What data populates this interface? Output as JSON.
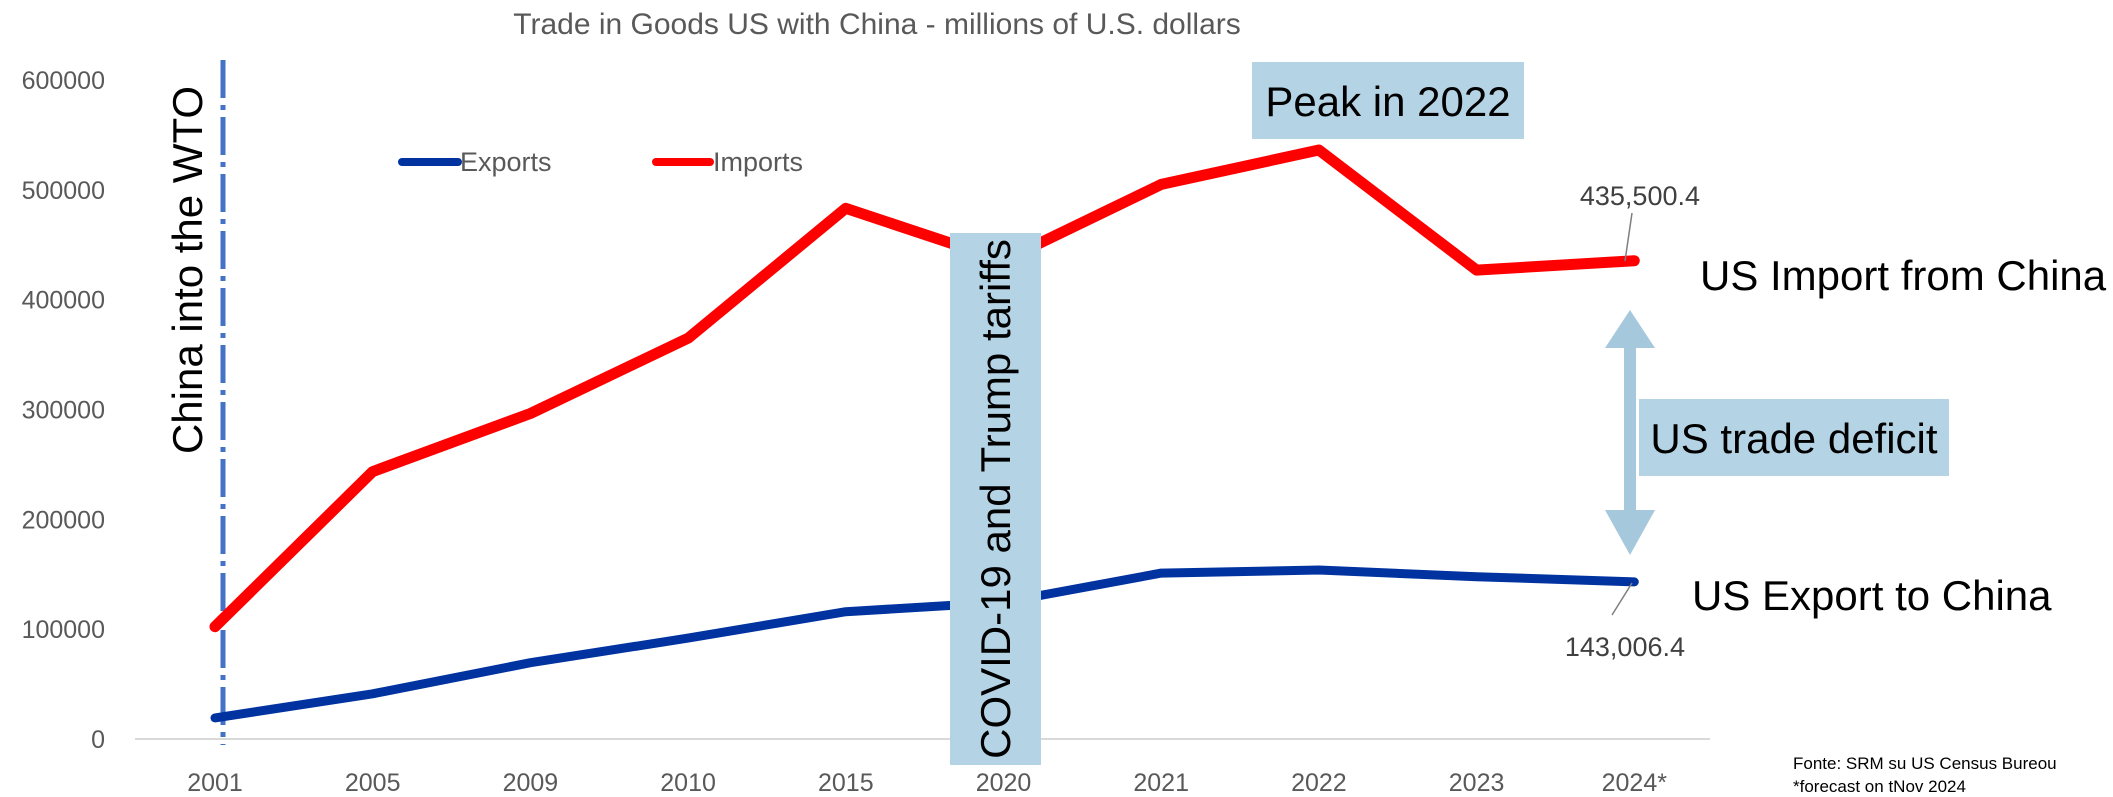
{
  "chart_data": {
    "type": "line",
    "title": "Trade in Goods  US with China - millions of U.S. dollars",
    "categories": [
      "2001",
      "2005",
      "2009",
      "2010",
      "2015",
      "2020",
      "2021",
      "2022",
      "2023",
      "2024*"
    ],
    "series": [
      {
        "name": "Exports",
        "color": "#0033a0",
        "values": [
          19182,
          41192,
          69497,
          91911,
          115873,
          124485,
          151065,
          153837,
          147809,
          143006.4
        ]
      },
      {
        "name": "Imports",
        "color": "#ff0000",
        "values": [
          102278,
          243470,
          296374,
          364953,
          483202,
          435449,
          504939,
          536307,
          426885,
          435500.4
        ]
      }
    ],
    "ylim": [
      0,
      600000
    ],
    "yticks": [
      0,
      100000,
      200000,
      300000,
      400000,
      500000,
      600000
    ],
    "ytick_labels": [
      "0",
      "100000",
      "200000",
      "300000",
      "400000",
      "500000",
      "600000"
    ],
    "grid": false,
    "legend_position": "top-left",
    "annotations": {
      "wto_label": "China into the WTO",
      "covid_label": "COVID-19 and Trump tariffs",
      "peak_label": "Peak in 2022",
      "import_value_label": "435,500.4",
      "export_value_label": "143,006.4",
      "import_side_label": "US Import from China",
      "export_side_label": "US Export to China",
      "deficit_label": "US trade deficit"
    },
    "annotation_colors": {
      "box_fill": "#b4d4e6",
      "wto_line": "#4472c4",
      "arrow": "#a5c8dc"
    }
  },
  "source": {
    "line1": "Fonte: SRM  su US Census Bureou",
    "line2": "*forecast on tNov 2024"
  }
}
